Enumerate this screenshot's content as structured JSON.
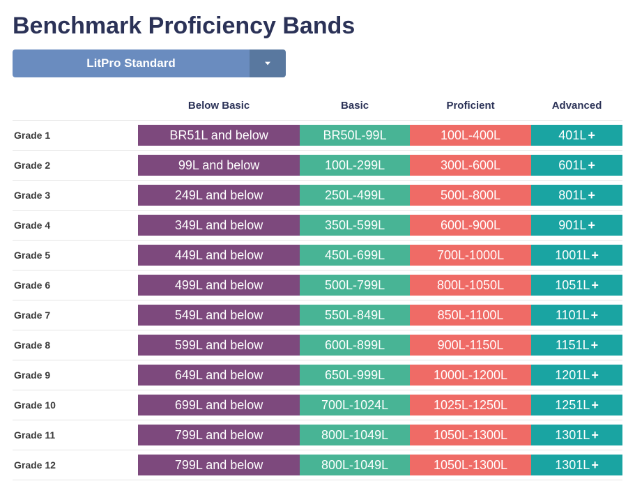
{
  "title": "Benchmark Proficiency Bands",
  "dropdown": {
    "selected": "LitPro Standard"
  },
  "colors": {
    "title": "#2b3257",
    "dropdown_main": "#6a8cbf",
    "dropdown_chevron_bg": "#59789f",
    "below_basic": "#7d497d",
    "basic": "#48b495",
    "proficient": "#ef6b66",
    "advanced": "#1aa4a2",
    "row_border": "#e4e4e4"
  },
  "columns": [
    "",
    "Below Basic",
    "Basic",
    "Proficient",
    "Advanced"
  ],
  "rows": [
    {
      "grade": "Grade 1",
      "below_basic": "BR51L and below",
      "basic": "BR50L-99L",
      "proficient": "100L-400L",
      "advanced": "401L"
    },
    {
      "grade": "Grade 2",
      "below_basic": "99L and below",
      "basic": "100L-299L",
      "proficient": "300L-600L",
      "advanced": "601L"
    },
    {
      "grade": "Grade 3",
      "below_basic": "249L and below",
      "basic": "250L-499L",
      "proficient": "500L-800L",
      "advanced": "801L"
    },
    {
      "grade": "Grade 4",
      "below_basic": "349L and below",
      "basic": "350L-599L",
      "proficient": "600L-900L",
      "advanced": "901L"
    },
    {
      "grade": "Grade 5",
      "below_basic": "449L and below",
      "basic": "450L-699L",
      "proficient": "700L-1000L",
      "advanced": "1001L"
    },
    {
      "grade": "Grade 6",
      "below_basic": "499L and below",
      "basic": "500L-799L",
      "proficient": "800L-1050L",
      "advanced": "1051L"
    },
    {
      "grade": "Grade 7",
      "below_basic": "549L and below",
      "basic": "550L-849L",
      "proficient": "850L-1100L",
      "advanced": "1101L"
    },
    {
      "grade": "Grade 8",
      "below_basic": "599L and below",
      "basic": "600L-899L",
      "proficient": "900L-1150L",
      "advanced": "1151L"
    },
    {
      "grade": "Grade 9",
      "below_basic": "649L and below",
      "basic": "650L-999L",
      "proficient": "1000L-1200L",
      "advanced": "1201L"
    },
    {
      "grade": "Grade 10",
      "below_basic": "699L and below",
      "basic": "700L-1024L",
      "proficient": "1025L-1250L",
      "advanced": "1251L"
    },
    {
      "grade": "Grade 11",
      "below_basic": "799L and below",
      "basic": "800L-1049L",
      "proficient": "1050L-1300L",
      "advanced": "1301L"
    },
    {
      "grade": "Grade 12",
      "below_basic": "799L and below",
      "basic": "800L-1049L",
      "proficient": "1050L-1300L",
      "advanced": "1301L"
    }
  ],
  "advanced_suffix": "+"
}
